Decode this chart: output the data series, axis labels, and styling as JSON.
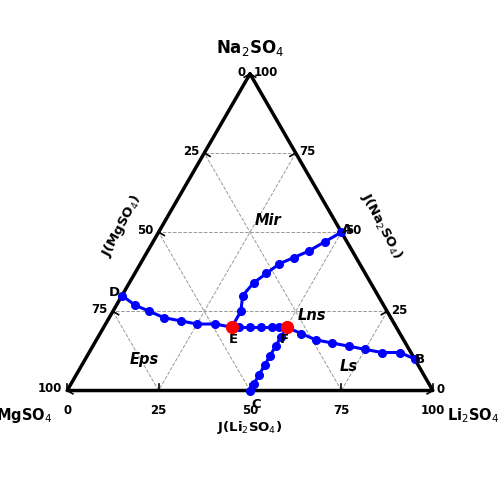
{
  "tick_values": [
    0,
    25,
    50,
    75,
    100
  ],
  "grid_values": [
    25,
    50,
    75
  ],
  "phase_labels": [
    {
      "text": "Mir",
      "li": 28,
      "na": 54,
      "mg": 18
    },
    {
      "text": "Lns",
      "li": 55,
      "na": 24,
      "mg": 21
    },
    {
      "text": "Eps",
      "li": 16,
      "na": 10,
      "mg": 74
    },
    {
      "text": "Ls",
      "li": 73,
      "na": 8,
      "mg": 19
    }
  ],
  "curve_A_E": [
    [
      50,
      50,
      0
    ],
    [
      47,
      47,
      6
    ],
    [
      44,
      44,
      12
    ],
    [
      41,
      42,
      17
    ],
    [
      38,
      40,
      22
    ],
    [
      36,
      37,
      27
    ],
    [
      34,
      34,
      32
    ],
    [
      33,
      30,
      37
    ],
    [
      35,
      25,
      40
    ],
    [
      35,
      20,
      45
    ]
  ],
  "curve_D_E": [
    [
      0,
      30,
      70
    ],
    [
      5,
      27,
      68
    ],
    [
      10,
      25,
      65
    ],
    [
      15,
      23,
      62
    ],
    [
      20,
      22,
      58
    ],
    [
      25,
      21,
      54
    ],
    [
      30,
      21,
      49
    ],
    [
      35,
      20,
      45
    ]
  ],
  "curve_E_F": [
    [
      35,
      20,
      45
    ],
    [
      37,
      20,
      43
    ],
    [
      40,
      20,
      40
    ],
    [
      43,
      20,
      37
    ],
    [
      46,
      20,
      34
    ],
    [
      48,
      20,
      32
    ],
    [
      50,
      20,
      30
    ]
  ],
  "curve_F_B": [
    [
      50,
      20,
      30
    ],
    [
      55,
      18,
      27
    ],
    [
      60,
      16,
      24
    ],
    [
      65,
      15,
      20
    ],
    [
      70,
      14,
      16
    ],
    [
      75,
      13,
      12
    ],
    [
      80,
      12,
      8
    ],
    [
      85,
      12,
      3
    ],
    [
      90,
      10,
      0
    ]
  ],
  "curve_F_C": [
    [
      50,
      20,
      30
    ],
    [
      50,
      17,
      33
    ],
    [
      50,
      14,
      36
    ],
    [
      50,
      11,
      39
    ],
    [
      50,
      8,
      42
    ],
    [
      50,
      5,
      45
    ],
    [
      50,
      2,
      48
    ],
    [
      50,
      0,
      50
    ]
  ],
  "point_E": [
    35,
    20,
    45
  ],
  "point_F": [
    50,
    20,
    30
  ],
  "point_A": [
    50,
    50,
    0
  ],
  "point_B": [
    90,
    10,
    0
  ],
  "point_C": [
    50,
    0,
    50
  ],
  "point_D": [
    0,
    30,
    70
  ],
  "line_color": "#0000FF",
  "line_width": 2.2,
  "dot_size": 5.5,
  "inv_color": "#FF0000",
  "inv_size": 8.5,
  "grid_color": "#999999",
  "grid_lw": 0.7,
  "tri_lw": 2.5
}
